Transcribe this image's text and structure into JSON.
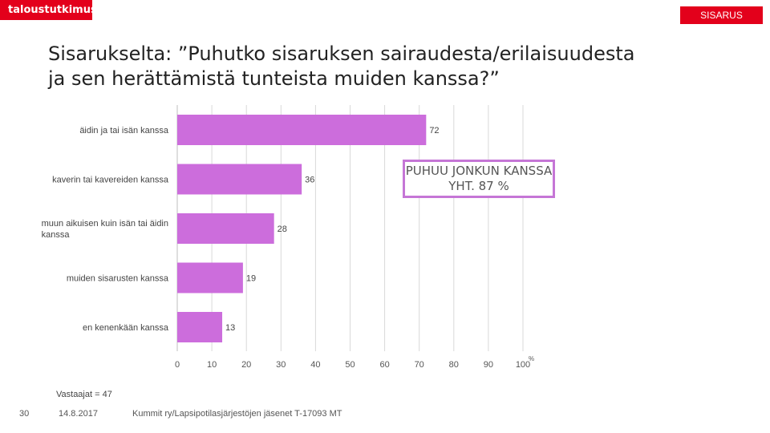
{
  "header": {
    "logo_text": "taloustutkimus",
    "badge": "SISARUS",
    "title": "Sisarukselta: ”Puhutko sisaruksen sairaudesta/erilaisuudesta ja sen herättämistä tunteista muiden kanssa?”"
  },
  "callout": "PUHUU JONKUN KANSSA YHT. 87 %",
  "footer": {
    "respondents": "Vastaajat = 47",
    "page_number": "30",
    "date": "14.8.2017",
    "source": "Kummit ry/Lapsipotilasjärjestöjen jäsenet T-17093 MT"
  },
  "colors": {
    "bar": "#cc6ddc",
    "brand": "#e3001b",
    "grid": "#d9d9d9"
  },
  "chart_data": {
    "type": "bar",
    "orientation": "horizontal",
    "categories": [
      "äidin ja tai isän kanssa",
      "kaverin tai kavereiden kanssa",
      "muun aikuisen kuin isän tai äidin kanssa",
      "muiden sisarusten kanssa",
      "en kenenkään kanssa"
    ],
    "category_lines": [
      [
        "äidin ja tai isän kanssa"
      ],
      [
        "kaverin tai kavereiden kanssa"
      ],
      [
        "muun aikuisen kuin isän tai äidin",
        "kanssa"
      ],
      [
        "muiden sisarusten kanssa"
      ],
      [
        "en kenenkään kanssa"
      ]
    ],
    "values": [
      72,
      36,
      28,
      19,
      13
    ],
    "xlim": [
      0,
      100
    ],
    "xticks": [
      0,
      10,
      20,
      30,
      40,
      50,
      60,
      70,
      80,
      90,
      100
    ],
    "unit_label": "%",
    "grid": true
  }
}
